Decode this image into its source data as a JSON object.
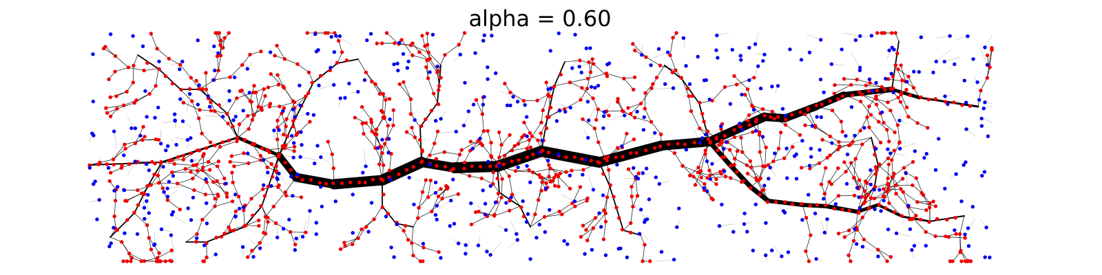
{
  "title": "alpha = 0.60",
  "colors": {
    "background": "#ffffff",
    "edge": "#000000",
    "branch_node": "#ee0000",
    "leaf_node": "#0000ee"
  }
}
